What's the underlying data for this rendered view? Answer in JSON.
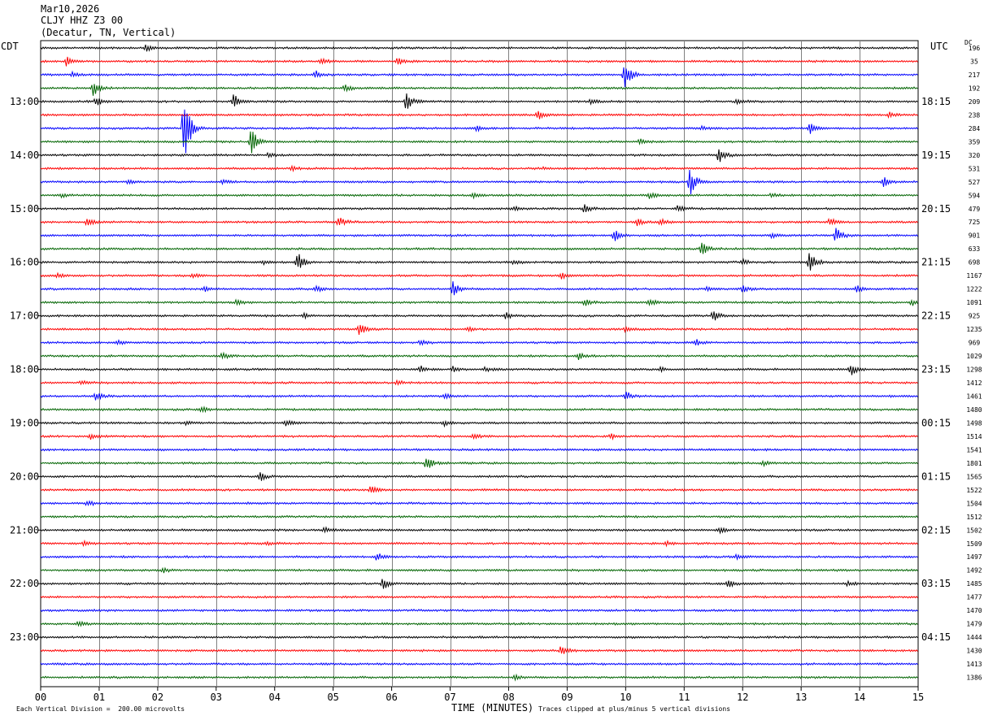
{
  "header": {
    "date": "Mar10,2026",
    "station": "CLJY HHZ Z3 00",
    "location": "(Decatur, TN, Vertical)"
  },
  "left_tz": "CDT",
  "right_tz": "UTC",
  "dc_label": "DC",
  "footer": {
    "scale": "Each Vertical Division =  200.00 microvolts",
    "clip": "Traces clipped at plus/minus 5 vertical divisions"
  },
  "colors": [
    "#000000",
    "#ff0000",
    "#0000ff",
    "#006400"
  ],
  "chart_data": {
    "type": "line",
    "title": "",
    "xlabel": "TIME (MINUTES)",
    "ylabel": "",
    "xlim": [
      0,
      15
    ],
    "x_ticks": [
      "00",
      "01",
      "02",
      "03",
      "04",
      "05",
      "06",
      "07",
      "08",
      "09",
      "10",
      "11",
      "12",
      "13",
      "14",
      "15"
    ],
    "left_labels": [
      "13:00",
      "14:00",
      "15:00",
      "16:00",
      "17:00",
      "18:00",
      "19:00",
      "20:00",
      "21:00",
      "22:00",
      "23:00"
    ],
    "right_labels": [
      "18:15",
      "19:15",
      "20:15",
      "21:15",
      "22:15",
      "23:15",
      "00:15",
      "01:15",
      "02:15",
      "03:15",
      "04:15"
    ],
    "grid": true,
    "traces": [
      {
        "dc": "196",
        "events": [
          [
            1.8,
            4
          ]
        ]
      },
      {
        "dc": "35",
        "events": [
          [
            0.45,
            7
          ],
          [
            4.8,
            4
          ],
          [
            6.1,
            5
          ]
        ]
      },
      {
        "dc": "217",
        "events": [
          [
            0.55,
            4
          ],
          [
            4.7,
            5
          ],
          [
            9.98,
            22
          ]
        ]
      },
      {
        "dc": "192",
        "events": [
          [
            0.9,
            10
          ],
          [
            5.2,
            5
          ]
        ]
      },
      {
        "dc": "209",
        "events": [
          [
            0.95,
            6
          ],
          [
            3.3,
            10
          ],
          [
            6.25,
            12
          ],
          [
            9.4,
            4
          ],
          [
            11.9,
            4
          ]
        ]
      },
      {
        "dc": "238",
        "events": [
          [
            8.5,
            6
          ],
          [
            14.5,
            3
          ]
        ]
      },
      {
        "dc": "284",
        "events": [
          [
            2.45,
            55
          ],
          [
            7.45,
            4
          ],
          [
            11.3,
            3
          ],
          [
            13.15,
            8
          ]
        ]
      },
      {
        "dc": "359",
        "events": [
          [
            3.6,
            22
          ],
          [
            10.25,
            4
          ]
        ]
      },
      {
        "dc": "320",
        "events": [
          [
            3.9,
            3
          ],
          [
            11.6,
            12
          ]
        ]
      },
      {
        "dc": "531",
        "events": [
          [
            4.3,
            3
          ],
          [
            8.6,
            2
          ]
        ]
      },
      {
        "dc": "527",
        "events": [
          [
            1.5,
            3
          ],
          [
            3.1,
            3
          ],
          [
            11.1,
            18
          ],
          [
            14.4,
            7
          ]
        ]
      },
      {
        "dc": "594",
        "events": [
          [
            0.35,
            2
          ],
          [
            7.4,
            4
          ],
          [
            10.4,
            4
          ],
          [
            12.5,
            3
          ]
        ]
      },
      {
        "dc": "479",
        "events": [
          [
            8.1,
            2
          ],
          [
            9.3,
            5
          ],
          [
            10.9,
            5
          ]
        ]
      },
      {
        "dc": "725",
        "events": [
          [
            0.8,
            6
          ],
          [
            5.1,
            7
          ],
          [
            10.2,
            4
          ],
          [
            10.6,
            4
          ],
          [
            13.5,
            6
          ]
        ]
      },
      {
        "dc": "901",
        "events": [
          [
            9.8,
            9
          ],
          [
            12.5,
            4
          ],
          [
            13.6,
            10
          ]
        ]
      },
      {
        "dc": "633",
        "events": [
          [
            11.3,
            9
          ]
        ]
      },
      {
        "dc": "698",
        "events": [
          [
            3.8,
            3
          ],
          [
            4.4,
            12
          ],
          [
            8.1,
            3
          ],
          [
            12,
            4
          ],
          [
            13.15,
            15
          ]
        ]
      },
      {
        "dc": "1167",
        "events": [
          [
            0.3,
            3
          ],
          [
            2.6,
            3
          ],
          [
            8.9,
            5
          ]
        ]
      },
      {
        "dc": "1222",
        "events": [
          [
            2.8,
            3
          ],
          [
            4.7,
            4
          ],
          [
            7.05,
            9
          ],
          [
            11.4,
            3
          ],
          [
            12,
            4
          ],
          [
            13.95,
            4
          ]
        ]
      },
      {
        "dc": "1091",
        "events": [
          [
            3.35,
            5
          ],
          [
            9.3,
            5
          ],
          [
            10.4,
            4
          ],
          [
            14.9,
            4
          ]
        ]
      },
      {
        "dc": "925",
        "events": [
          [
            4.5,
            3
          ],
          [
            7.95,
            4
          ],
          [
            11.5,
            7
          ]
        ]
      },
      {
        "dc": "1235",
        "events": [
          [
            5.45,
            9
          ],
          [
            7.3,
            3
          ],
          [
            10,
            3
          ]
        ]
      },
      {
        "dc": "969",
        "events": [
          [
            1.3,
            3
          ],
          [
            6.5,
            3
          ],
          [
            11.2,
            4
          ]
        ]
      },
      {
        "dc": "1029",
        "events": [
          [
            3.1,
            4
          ],
          [
            9.2,
            4
          ]
        ]
      },
      {
        "dc": "1298",
        "events": [
          [
            6.5,
            4
          ],
          [
            7.05,
            4
          ],
          [
            7.6,
            3
          ],
          [
            10.6,
            3
          ],
          [
            13.85,
            8
          ]
        ]
      },
      {
        "dc": "1412",
        "events": [
          [
            0.7,
            3
          ],
          [
            6.1,
            4
          ]
        ]
      },
      {
        "dc": "1461",
        "events": [
          [
            0.95,
            5
          ],
          [
            6.9,
            3
          ],
          [
            10,
            6
          ]
        ]
      },
      {
        "dc": "1480",
        "events": [
          [
            2.75,
            4
          ]
        ]
      },
      {
        "dc": "1498",
        "events": [
          [
            2.5,
            3
          ],
          [
            4.2,
            4
          ],
          [
            6.9,
            4
          ]
        ]
      },
      {
        "dc": "1514",
        "events": [
          [
            0.85,
            4
          ],
          [
            7.4,
            4
          ],
          [
            9.75,
            3
          ]
        ]
      },
      {
        "dc": "1541",
        "events": []
      },
      {
        "dc": "1801",
        "events": [
          [
            6.6,
            10
          ],
          [
            12.35,
            3
          ]
        ]
      },
      {
        "dc": "1565",
        "events": [
          [
            3.75,
            6
          ]
        ]
      },
      {
        "dc": "1522",
        "events": [
          [
            5.65,
            5
          ]
        ]
      },
      {
        "dc": "1504",
        "events": [
          [
            0.8,
            4
          ]
        ]
      },
      {
        "dc": "1512",
        "events": []
      },
      {
        "dc": "1502",
        "events": [
          [
            4.85,
            4
          ],
          [
            11.6,
            4
          ]
        ]
      },
      {
        "dc": "1509",
        "events": [
          [
            0.75,
            3
          ],
          [
            3.85,
            3
          ],
          [
            10.7,
            3
          ]
        ]
      },
      {
        "dc": "1497",
        "events": [
          [
            5.75,
            5
          ],
          [
            11.9,
            3
          ]
        ]
      },
      {
        "dc": "1492",
        "events": [
          [
            2.1,
            3
          ]
        ]
      },
      {
        "dc": "1485",
        "events": [
          [
            5.85,
            8
          ],
          [
            11.75,
            5
          ],
          [
            13.8,
            3
          ]
        ]
      },
      {
        "dc": "1477",
        "events": []
      },
      {
        "dc": "1470",
        "events": []
      },
      {
        "dc": "1479",
        "events": [
          [
            0.65,
            3
          ]
        ]
      },
      {
        "dc": "1444",
        "events": []
      },
      {
        "dc": "1430",
        "events": [
          [
            8.9,
            6
          ]
        ]
      },
      {
        "dc": "1413",
        "events": []
      },
      {
        "dc": "1386",
        "events": [
          [
            8.1,
            3
          ]
        ]
      }
    ]
  }
}
